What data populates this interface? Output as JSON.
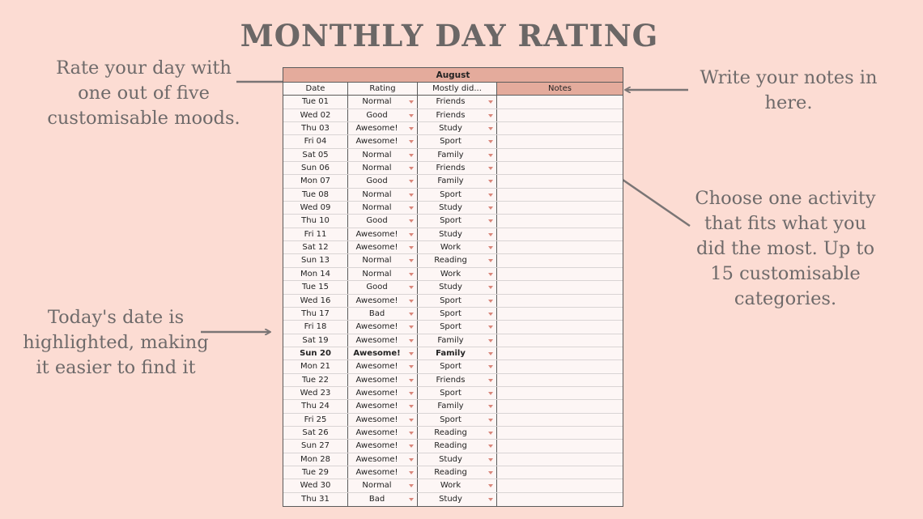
{
  "title": "MONTHLY DAY RATING",
  "notes": {
    "rate": "Rate your day with one out of five customisable moods.",
    "today": "Today's date is highlighted, making it easier to find it",
    "write_notes": "Write your notes in here.",
    "activity": "Choose one activity that fits what you did the most. Up to 15 customisable categories."
  },
  "sheet": {
    "month": "August",
    "headers": {
      "date": "Date",
      "rating": "Rating",
      "activity": "Mostly did...",
      "notes": "Notes"
    },
    "rows": [
      {
        "date": "Tue 01",
        "rating": "Normal",
        "activity": "Friends"
      },
      {
        "date": "Wed 02",
        "rating": "Good",
        "activity": "Friends"
      },
      {
        "date": "Thu 03",
        "rating": "Awesome!",
        "activity": "Study"
      },
      {
        "date": "Fri 04",
        "rating": "Awesome!",
        "activity": "Sport"
      },
      {
        "date": "Sat 05",
        "rating": "Normal",
        "activity": "Family"
      },
      {
        "date": "Sun 06",
        "rating": "Normal",
        "activity": "Friends"
      },
      {
        "date": "Mon 07",
        "rating": "Good",
        "activity": "Family"
      },
      {
        "date": "Tue 08",
        "rating": "Normal",
        "activity": "Sport"
      },
      {
        "date": "Wed 09",
        "rating": "Normal",
        "activity": "Study"
      },
      {
        "date": "Thu 10",
        "rating": "Good",
        "activity": "Sport"
      },
      {
        "date": "Fri 11",
        "rating": "Awesome!",
        "activity": "Study"
      },
      {
        "date": "Sat 12",
        "rating": "Awesome!",
        "activity": "Work"
      },
      {
        "date": "Sun 13",
        "rating": "Normal",
        "activity": "Reading"
      },
      {
        "date": "Mon 14",
        "rating": "Normal",
        "activity": "Work"
      },
      {
        "date": "Tue 15",
        "rating": "Good",
        "activity": "Study"
      },
      {
        "date": "Wed 16",
        "rating": "Awesome!",
        "activity": "Sport"
      },
      {
        "date": "Thu 17",
        "rating": "Bad",
        "activity": "Sport"
      },
      {
        "date": "Fri 18",
        "rating": "Awesome!",
        "activity": "Sport"
      },
      {
        "date": "Sat 19",
        "rating": "Awesome!",
        "activity": "Family"
      },
      {
        "date": "Sun 20",
        "rating": "Awesome!",
        "activity": "Family",
        "today": true
      },
      {
        "date": "Mon 21",
        "rating": "Awesome!",
        "activity": "Sport"
      },
      {
        "date": "Tue 22",
        "rating": "Awesome!",
        "activity": "Friends"
      },
      {
        "date": "Wed 23",
        "rating": "Awesome!",
        "activity": "Sport"
      },
      {
        "date": "Thu 24",
        "rating": "Awesome!",
        "activity": "Family"
      },
      {
        "date": "Fri 25",
        "rating": "Awesome!",
        "activity": "Sport"
      },
      {
        "date": "Sat 26",
        "rating": "Awesome!",
        "activity": "Reading"
      },
      {
        "date": "Sun 27",
        "rating": "Awesome!",
        "activity": "Reading"
      },
      {
        "date": "Mon 28",
        "rating": "Awesome!",
        "activity": "Study"
      },
      {
        "date": "Tue 29",
        "rating": "Awesome!",
        "activity": "Reading"
      },
      {
        "date": "Wed 30",
        "rating": "Normal",
        "activity": "Work"
      },
      {
        "date": "Thu 31",
        "rating": "Bad",
        "activity": "Study"
      }
    ]
  },
  "colors": {
    "background": "#fcdcd3",
    "header_accent": "#e4ab9c",
    "arrow": "#7a7575",
    "dropdown_arrow": "#d9867a"
  }
}
